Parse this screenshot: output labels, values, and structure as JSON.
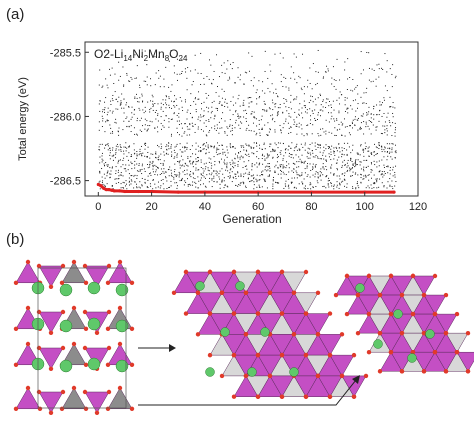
{
  "panel_a_label": "(a)",
  "panel_b_label": "(b)",
  "chart_data": {
    "type": "scatter",
    "title_parts": [
      {
        "t": "O2-Li",
        "sub": false
      },
      {
        "t": "14",
        "sub": true
      },
      {
        "t": "Ni",
        "sub": false
      },
      {
        "t": "2",
        "sub": true
      },
      {
        "t": "Mn",
        "sub": false
      },
      {
        "t": "8",
        "sub": true
      },
      {
        "t": "O",
        "sub": false
      },
      {
        "t": "24",
        "sub": true
      }
    ],
    "xlabel": "Generation",
    "ylabel": "Total energy (eV)",
    "xlim": [
      -5,
      120
    ],
    "ylim": [
      -286.62,
      -285.42
    ],
    "xticks": [
      0,
      20,
      40,
      60,
      80,
      100,
      120
    ],
    "yticks": [
      -286.5,
      -286.0,
      -285.5
    ],
    "xtick_labels": [
      "0",
      "20",
      "40",
      "60",
      "80",
      "100",
      "120"
    ],
    "ytick_labels": [
      "-286.5",
      "-286.0",
      "-285.5"
    ],
    "grid": false,
    "series": [
      {
        "role": "all structures per generation",
        "color": "#222222",
        "generations": [
          0,
          111
        ],
        "energy_bands": [
          {
            "range": [
              -286.56,
              -286.38
            ],
            "density": "high"
          },
          {
            "range": [
              -286.38,
              -286.2
            ],
            "density": "high"
          },
          {
            "range": [
              -286.15,
              -285.85
            ],
            "density": "high"
          },
          {
            "range": [
              -285.85,
              -285.62
            ],
            "density": "low"
          },
          {
            "range": [
              -285.62,
              -285.48
            ],
            "density": "sparse"
          }
        ]
      },
      {
        "role": "lowest energy per generation",
        "color": "#e02020",
        "x": [
          0,
          1,
          2,
          3,
          4,
          5,
          6,
          8,
          10,
          15,
          20,
          30,
          40,
          60,
          80,
          100,
          111
        ],
        "y": [
          -286.53,
          -286.54,
          -286.56,
          -286.57,
          -286.57,
          -286.575,
          -286.58,
          -286.58,
          -286.585,
          -286.585,
          -286.585,
          -286.59,
          -286.59,
          -286.59,
          -286.59,
          -286.59,
          -286.59
        ]
      }
    ]
  },
  "panel_b": {
    "description_arrows": 2,
    "colors": {
      "mn_octahedra": "#c44fc4",
      "ni_octahedra": "#8c8c8c",
      "li": "#5fc86a",
      "o": "#e03a2a"
    }
  }
}
